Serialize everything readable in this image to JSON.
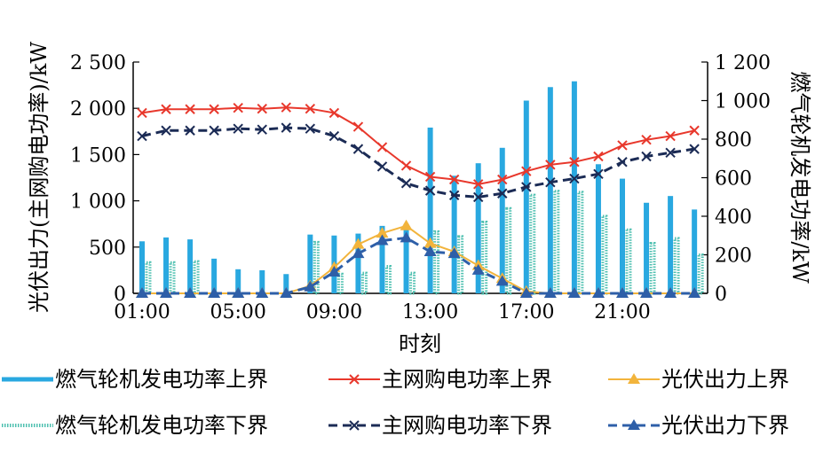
{
  "chart_data": {
    "type": "bar+line",
    "title": "",
    "xlabel": "时刻",
    "ylabel_left": "光伏出力(主网购电功率)/kW",
    "ylabel_right": "燃气轮机发电功率/kW",
    "ylim_left": [
      0,
      2500
    ],
    "ylim_right": [
      0,
      1200
    ],
    "yticks_left": [
      "0",
      "500",
      "1 000",
      "1 500",
      "2 000",
      "2 500"
    ],
    "yticks_right": [
      "0",
      "200",
      "400",
      "600",
      "800",
      "1 000",
      "1 200"
    ],
    "x_tick_labels": [
      "01:00",
      "05:00",
      "09:00",
      "13:00",
      "17:00",
      "21:00"
    ],
    "hours": [
      1,
      2,
      3,
      4,
      5,
      6,
      7,
      8,
      9,
      10,
      11,
      12,
      13,
      14,
      15,
      16,
      17,
      18,
      19,
      20,
      21,
      22,
      23,
      24
    ],
    "series": [
      {
        "name": "燃气轮机发电功率上界",
        "kind": "bar",
        "axis": "right",
        "color": "#29a8e0",
        "values": [
          270,
          290,
          280,
          180,
          125,
          120,
          100,
          305,
          300,
          310,
          350,
          360,
          860,
          610,
          675,
          755,
          1000,
          1070,
          1100,
          670,
          595,
          470,
          505,
          435
        ]
      },
      {
        "name": "燃气轮机发电功率下界",
        "kind": "bar",
        "axis": "right",
        "color": "#4fc0b0",
        "values": [
          160,
          160,
          165,
          0,
          0,
          0,
          0,
          265,
          100,
          105,
          140,
          105,
          320,
          295,
          370,
          440,
          510,
          530,
          525,
          400,
          330,
          260,
          285,
          200
        ]
      },
      {
        "name": "主网购电功率上界",
        "kind": "line",
        "axis": "left",
        "color": "#e8382c",
        "marker": "x",
        "values": [
          1950,
          1990,
          1990,
          1990,
          2005,
          1995,
          2010,
          1995,
          1950,
          1800,
          1580,
          1380,
          1260,
          1230,
          1180,
          1230,
          1320,
          1390,
          1420,
          1480,
          1600,
          1660,
          1700,
          1760
        ]
      },
      {
        "name": "主网购电功率下界",
        "kind": "line",
        "axis": "left",
        "color": "#1b2b55",
        "marker": "x",
        "dash": true,
        "values": [
          1700,
          1760,
          1760,
          1760,
          1780,
          1770,
          1790,
          1780,
          1700,
          1560,
          1370,
          1190,
          1110,
          1060,
          1040,
          1080,
          1150,
          1200,
          1240,
          1290,
          1420,
          1480,
          1520,
          1560
        ]
      },
      {
        "name": "光伏出力上界",
        "kind": "line",
        "axis": "left",
        "color": "#f2b43c",
        "marker": "triangle",
        "values": [
          0,
          0,
          0,
          0,
          0,
          0,
          0,
          80,
          280,
          530,
          650,
          730,
          540,
          450,
          300,
          160,
          20,
          0,
          0,
          0,
          0,
          0,
          0,
          0
        ]
      },
      {
        "name": "光伏出力下界",
        "kind": "line",
        "axis": "left",
        "color": "#2e5fa8",
        "marker": "triangle",
        "dash": true,
        "values": [
          0,
          0,
          0,
          0,
          0,
          0,
          0,
          70,
          230,
          430,
          570,
          600,
          450,
          430,
          250,
          130,
          0,
          0,
          0,
          0,
          0,
          0,
          0,
          0
        ]
      }
    ],
    "legend_position": "bottom"
  }
}
